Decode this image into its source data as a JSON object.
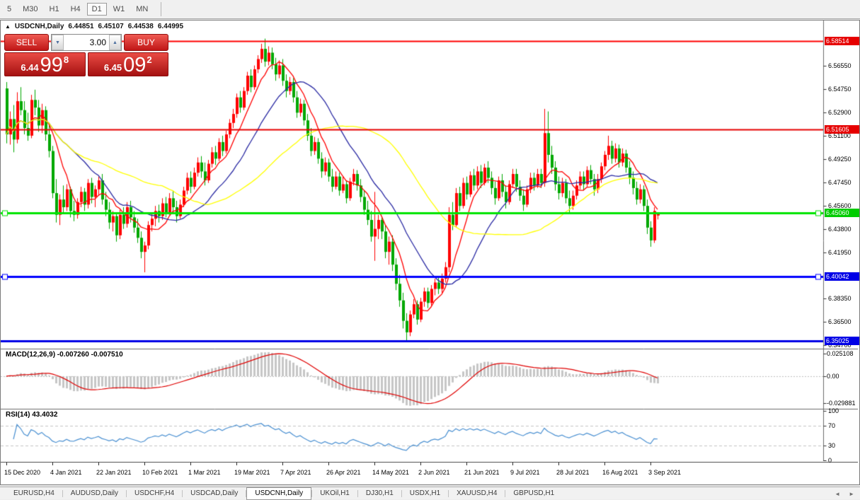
{
  "toolbar": {
    "timeframes": [
      "5",
      "M30",
      "H1",
      "H4",
      "D1",
      "W1",
      "MN"
    ],
    "active": "D1"
  },
  "window": {
    "title": {
      "collapse_icon": "▲",
      "symbol": "USDCNH,Daily",
      "open": "6.44851",
      "high": "6.45107",
      "low": "6.44538",
      "close": "6.44995"
    },
    "trade_panel": {
      "sell_label": "SELL",
      "buy_label": "BUY",
      "volume": "3.00",
      "spin_down_icon": "▼",
      "spin_up_icon": "▲",
      "sell_price_small": "6.44",
      "sell_price_big": "99",
      "sell_price_sup": "8",
      "buy_price_small": "6.45",
      "buy_price_big": "09",
      "buy_price_sup": "2"
    }
  },
  "chart_data": {
    "type": "candlestick",
    "symbol": "USDCNH",
    "period": "Daily",
    "up_color": "#ff0000",
    "down_color": "#00a800",
    "ylim": [
      6.3442,
      6.6012
    ],
    "y_ticks": [
      6.5655,
      6.5475,
      6.529,
      6.511,
      6.4925,
      6.4745,
      6.456,
      6.438,
      6.4195,
      6.3835,
      6.365,
      6.347
    ],
    "y_tick_labels": [
      "6.56550",
      "6.54750",
      "6.52900",
      "6.51100",
      "6.49250",
      "6.47450",
      "6.45600",
      "6.43800",
      "6.41950",
      "6.38350",
      "6.36500",
      "6.34700"
    ],
    "hlines": [
      {
        "price": 6.58514,
        "label": "6.58514",
        "color": "#ff0000",
        "badge": "#e60000",
        "width": 2,
        "markers": false
      },
      {
        "price": 6.51605,
        "label": "6.51605",
        "color": "#e60000",
        "badge": "#e60000",
        "width": 2,
        "markers": false
      },
      {
        "price": 6.4506,
        "label": "6.45060",
        "color": "#00e400",
        "badge": "#00cc00",
        "width": 3,
        "markers": true
      },
      {
        "price": 6.40042,
        "label": "6.40042",
        "color": "#0000ff",
        "badge": "#0000e6",
        "width": 3,
        "markers": true
      },
      {
        "price": 6.35025,
        "label": "6.35025",
        "color": "#0000e6",
        "badge": "#0000e6",
        "width": 3,
        "markers": false
      }
    ],
    "moving_averages": [
      {
        "period": 8,
        "color": "#ff0000"
      },
      {
        "period": 20,
        "color": "#2929a3"
      },
      {
        "period": 45,
        "color": "#ffff00"
      }
    ],
    "macd": {
      "label": "MACD(12,26,9) -0.007260 -0.007510",
      "fast": 12,
      "slow": 26,
      "signal": 9,
      "scale_labels": [
        "0.025108",
        "0.00",
        "-0.029881"
      ],
      "scale_values": [
        0.025108,
        0,
        -0.029881
      ],
      "bar_color": "#c6c6c6",
      "line_color": "#e00000"
    },
    "rsi": {
      "label": "RSI(14) 43.4032",
      "period": 14,
      "scale_labels": [
        "100",
        "70",
        "30",
        "0"
      ],
      "scale_values": [
        100,
        70,
        30,
        0
      ],
      "levels": [
        70,
        30
      ],
      "color": "#4a90d2"
    },
    "x_labels": [
      {
        "text": "15 Dec 2020",
        "i": 0
      },
      {
        "text": "4 Jan 2021",
        "i": 13
      },
      {
        "text": "22 Jan 2021",
        "i": 26
      },
      {
        "text": "10 Feb 2021",
        "i": 39
      },
      {
        "text": "1 Mar 2021",
        "i": 52
      },
      {
        "text": "19 Mar 2021",
        "i": 65
      },
      {
        "text": "7 Apr 2021",
        "i": 78
      },
      {
        "text": "26 Apr 2021",
        "i": 91
      },
      {
        "text": "14 May 2021",
        "i": 104
      },
      {
        "text": "2 Jun 2021",
        "i": 117
      },
      {
        "text": "21 Jun 2021",
        "i": 130
      },
      {
        "text": "9 Jul 2021",
        "i": 143
      },
      {
        "text": "28 Jul 2021",
        "i": 156
      },
      {
        "text": "16 Aug 2021",
        "i": 169
      },
      {
        "text": "3 Sep 2021",
        "i": 182
      }
    ],
    "candles": [
      [
        6.548,
        6.553,
        6.505,
        6.512
      ],
      [
        6.512,
        6.53,
        6.504,
        6.524
      ],
      [
        6.524,
        6.535,
        6.498,
        6.508
      ],
      [
        6.508,
        6.545,
        6.505,
        6.538
      ],
      [
        6.538,
        6.549,
        6.527,
        6.531
      ],
      [
        6.531,
        6.538,
        6.512,
        6.517
      ],
      [
        6.517,
        6.529,
        6.507,
        6.511
      ],
      [
        6.511,
        6.543,
        6.509,
        6.539
      ],
      [
        6.539,
        6.547,
        6.527,
        6.533
      ],
      [
        6.533,
        6.539,
        6.514,
        6.519
      ],
      [
        6.519,
        6.536,
        6.513,
        6.531
      ],
      [
        6.531,
        6.534,
        6.507,
        6.512
      ],
      [
        6.512,
        6.521,
        6.494,
        6.499
      ],
      [
        6.499,
        6.503,
        6.462,
        6.466
      ],
      [
        6.466,
        6.477,
        6.443,
        6.449
      ],
      [
        6.449,
        6.465,
        6.441,
        6.461
      ],
      [
        6.461,
        6.472,
        6.45,
        6.455
      ],
      [
        6.455,
        6.473,
        6.452,
        6.469
      ],
      [
        6.469,
        6.471,
        6.447,
        6.452
      ],
      [
        6.452,
        6.46,
        6.444,
        6.449
      ],
      [
        6.449,
        6.462,
        6.446,
        6.459
      ],
      [
        6.459,
        6.471,
        6.455,
        6.467
      ],
      [
        6.467,
        6.47,
        6.452,
        6.457
      ],
      [
        6.457,
        6.477,
        6.454,
        6.474
      ],
      [
        6.474,
        6.478,
        6.458,
        6.463
      ],
      [
        6.463,
        6.472,
        6.455,
        6.469
      ],
      [
        6.469,
        6.479,
        6.464,
        6.476
      ],
      [
        6.476,
        6.481,
        6.457,
        6.461
      ],
      [
        6.461,
        6.467,
        6.448,
        6.453
      ],
      [
        6.453,
        6.459,
        6.438,
        6.443
      ],
      [
        6.443,
        6.452,
        6.436,
        6.448
      ],
      [
        6.448,
        6.451,
        6.428,
        6.433
      ],
      [
        6.433,
        6.453,
        6.43,
        6.449
      ],
      [
        6.449,
        6.455,
        6.438,
        6.442
      ],
      [
        6.442,
        6.459,
        6.439,
        6.455
      ],
      [
        6.455,
        6.46,
        6.443,
        6.447
      ],
      [
        6.447,
        6.452,
        6.435,
        6.439
      ],
      [
        6.439,
        6.446,
        6.427,
        6.431
      ],
      [
        6.431,
        6.436,
        6.415,
        6.42
      ],
      [
        6.42,
        6.428,
        6.404,
        6.425
      ],
      [
        6.425,
        6.444,
        6.422,
        6.441
      ],
      [
        6.441,
        6.45,
        6.436,
        6.446
      ],
      [
        6.446,
        6.456,
        6.44,
        6.452
      ],
      [
        6.452,
        6.457,
        6.443,
        6.448
      ],
      [
        6.448,
        6.462,
        6.445,
        6.458
      ],
      [
        6.458,
        6.463,
        6.447,
        6.451
      ],
      [
        6.451,
        6.466,
        6.449,
        6.462
      ],
      [
        6.462,
        6.468,
        6.451,
        6.455
      ],
      [
        6.455,
        6.46,
        6.443,
        6.448
      ],
      [
        6.448,
        6.461,
        6.446,
        6.457
      ],
      [
        6.457,
        6.471,
        6.455,
        6.468
      ],
      [
        6.468,
        6.482,
        6.465,
        6.478
      ],
      [
        6.478,
        6.483,
        6.466,
        6.471
      ],
      [
        6.471,
        6.486,
        6.469,
        6.482
      ],
      [
        6.482,
        6.494,
        6.479,
        6.49
      ],
      [
        6.49,
        6.495,
        6.478,
        6.483
      ],
      [
        6.483,
        6.49,
        6.472,
        6.476
      ],
      [
        6.476,
        6.492,
        6.474,
        6.489
      ],
      [
        6.489,
        6.502,
        6.486,
        6.498
      ],
      [
        6.498,
        6.503,
        6.488,
        6.493
      ],
      [
        6.493,
        6.509,
        6.491,
        6.506
      ],
      [
        6.506,
        6.511,
        6.495,
        6.499
      ],
      [
        6.499,
        6.515,
        6.497,
        6.512
      ],
      [
        6.512,
        6.524,
        6.509,
        6.521
      ],
      [
        6.521,
        6.532,
        6.517,
        6.528
      ],
      [
        6.528,
        6.544,
        6.525,
        6.541
      ],
      [
        6.541,
        6.546,
        6.529,
        6.533
      ],
      [
        6.533,
        6.549,
        6.531,
        6.546
      ],
      [
        6.546,
        6.561,
        6.543,
        6.558
      ],
      [
        6.558,
        6.563,
        6.545,
        6.549
      ],
      [
        6.549,
        6.566,
        6.547,
        6.563
      ],
      [
        6.563,
        6.574,
        6.56,
        6.571
      ],
      [
        6.571,
        6.583,
        6.568,
        6.579
      ],
      [
        6.579,
        6.587,
        6.565,
        6.569
      ],
      [
        6.569,
        6.581,
        6.566,
        6.576
      ],
      [
        6.576,
        6.58,
        6.563,
        6.567
      ],
      [
        6.567,
        6.572,
        6.554,
        6.559
      ],
      [
        6.559,
        6.57,
        6.556,
        6.566
      ],
      [
        6.566,
        6.571,
        6.55,
        6.554
      ],
      [
        6.554,
        6.559,
        6.541,
        6.546
      ],
      [
        6.546,
        6.557,
        6.543,
        6.553
      ],
      [
        6.553,
        6.556,
        6.537,
        6.541
      ],
      [
        6.541,
        6.546,
        6.525,
        6.529
      ],
      [
        6.529,
        6.54,
        6.526,
        6.536
      ],
      [
        6.536,
        6.539,
        6.519,
        6.523
      ],
      [
        6.523,
        6.528,
        6.507,
        6.511
      ],
      [
        6.511,
        6.517,
        6.495,
        6.499
      ],
      [
        6.499,
        6.51,
        6.496,
        6.506
      ],
      [
        6.506,
        6.509,
        6.489,
        6.493
      ],
      [
        6.493,
        6.498,
        6.478,
        6.483
      ],
      [
        6.483,
        6.494,
        6.48,
        6.49
      ],
      [
        6.49,
        6.493,
        6.475,
        6.479
      ],
      [
        6.479,
        6.485,
        6.467,
        6.471
      ],
      [
        6.471,
        6.483,
        6.469,
        6.479
      ],
      [
        6.479,
        6.482,
        6.464,
        6.468
      ],
      [
        6.468,
        6.479,
        6.466,
        6.473
      ],
      [
        6.473,
        6.476,
        6.458,
        6.462
      ],
      [
        6.462,
        6.478,
        6.46,
        6.475
      ],
      [
        6.475,
        6.485,
        6.472,
        6.481
      ],
      [
        6.481,
        6.484,
        6.468,
        6.472
      ],
      [
        6.472,
        6.477,
        6.459,
        6.463
      ],
      [
        6.463,
        6.468,
        6.449,
        6.453
      ],
      [
        6.453,
        6.46,
        6.441,
        6.445
      ],
      [
        6.445,
        6.452,
        6.428,
        6.432
      ],
      [
        6.432,
        6.467,
        6.413,
        6.438
      ],
      [
        6.438,
        6.449,
        6.43,
        6.445
      ],
      [
        6.445,
        6.448,
        6.43,
        6.436
      ],
      [
        6.436,
        6.441,
        6.415,
        6.42
      ],
      [
        6.42,
        6.432,
        6.41,
        6.428
      ],
      [
        6.428,
        6.433,
        6.405,
        6.41
      ],
      [
        6.41,
        6.415,
        6.39,
        6.395
      ],
      [
        6.395,
        6.402,
        6.377,
        6.382
      ],
      [
        6.382,
        6.388,
        6.36,
        6.366
      ],
      [
        6.366,
        6.372,
        6.3505,
        6.357
      ],
      [
        6.357,
        6.374,
        6.354,
        6.371
      ],
      [
        6.371,
        6.383,
        6.368,
        6.379
      ],
      [
        6.379,
        6.382,
        6.363,
        6.367
      ],
      [
        6.367,
        6.384,
        6.365,
        6.381
      ],
      [
        6.381,
        6.392,
        6.377,
        6.389
      ],
      [
        6.389,
        6.392,
        6.376,
        6.38
      ],
      [
        6.38,
        6.394,
        6.378,
        6.391
      ],
      [
        6.391,
        6.399,
        6.386,
        6.396
      ],
      [
        6.396,
        6.401,
        6.387,
        6.391
      ],
      [
        6.391,
        6.403,
        6.388,
        6.399
      ],
      [
        6.399,
        6.412,
        6.396,
        6.408
      ],
      [
        6.408,
        6.455,
        6.404,
        6.449
      ],
      [
        6.449,
        6.459,
        6.437,
        6.441
      ],
      [
        6.441,
        6.47,
        6.439,
        6.466
      ],
      [
        6.466,
        6.471,
        6.452,
        6.456
      ],
      [
        6.456,
        6.478,
        6.454,
        6.474
      ],
      [
        6.474,
        6.479,
        6.461,
        6.465
      ],
      [
        6.465,
        6.483,
        6.463,
        6.48
      ],
      [
        6.48,
        6.485,
        6.468,
        6.472
      ],
      [
        6.472,
        6.487,
        6.469,
        6.483
      ],
      [
        6.483,
        6.488,
        6.47,
        6.474
      ],
      [
        6.474,
        6.489,
        6.472,
        6.486
      ],
      [
        6.486,
        6.491,
        6.474,
        6.478
      ],
      [
        6.478,
        6.483,
        6.465,
        6.47
      ],
      [
        6.47,
        6.475,
        6.457,
        6.462
      ],
      [
        6.462,
        6.479,
        6.46,
        6.476
      ],
      [
        6.476,
        6.481,
        6.463,
        6.467
      ],
      [
        6.467,
        6.472,
        6.454,
        6.459
      ],
      [
        6.459,
        6.476,
        6.457,
        6.473
      ],
      [
        6.473,
        6.485,
        6.47,
        6.481
      ],
      [
        6.481,
        6.485,
        6.467,
        6.471
      ],
      [
        6.471,
        6.476,
        6.46,
        6.464
      ],
      [
        6.464,
        6.469,
        6.452,
        6.457
      ],
      [
        6.457,
        6.472,
        6.455,
        6.469
      ],
      [
        6.469,
        6.482,
        6.466,
        6.478
      ],
      [
        6.478,
        6.482,
        6.468,
        6.472
      ],
      [
        6.472,
        6.485,
        6.47,
        6.481
      ],
      [
        6.481,
        6.485,
        6.47,
        6.474
      ],
      [
        6.474,
        6.532,
        6.471,
        6.513
      ],
      [
        6.513,
        6.53,
        6.49,
        6.496
      ],
      [
        6.496,
        6.503,
        6.481,
        6.486
      ],
      [
        6.486,
        6.491,
        6.468,
        6.473
      ],
      [
        6.473,
        6.479,
        6.461,
        6.466
      ],
      [
        6.466,
        6.478,
        6.463,
        6.474
      ],
      [
        6.474,
        6.477,
        6.458,
        6.462
      ],
      [
        6.462,
        6.468,
        6.451,
        6.456
      ],
      [
        6.456,
        6.468,
        6.453,
        6.464
      ],
      [
        6.464,
        6.476,
        6.461,
        6.472
      ],
      [
        6.472,
        6.483,
        6.469,
        6.479
      ],
      [
        6.479,
        6.483,
        6.468,
        6.473
      ],
      [
        6.473,
        6.487,
        6.471,
        6.484
      ],
      [
        6.484,
        6.488,
        6.473,
        6.477
      ],
      [
        6.477,
        6.481,
        6.464,
        6.469
      ],
      [
        6.469,
        6.481,
        6.466,
        6.477
      ],
      [
        6.477,
        6.49,
        6.474,
        6.487
      ],
      [
        6.487,
        6.499,
        6.484,
        6.496
      ],
      [
        6.496,
        6.511,
        6.492,
        6.503
      ],
      [
        6.503,
        6.507,
        6.489,
        6.493
      ],
      [
        6.493,
        6.505,
        6.49,
        6.501
      ],
      [
        6.501,
        6.504,
        6.486,
        6.49
      ],
      [
        6.49,
        6.501,
        6.487,
        6.497
      ],
      [
        6.497,
        6.5,
        6.482,
        6.486
      ],
      [
        6.486,
        6.491,
        6.473,
        6.478
      ],
      [
        6.478,
        6.483,
        6.465,
        6.47
      ],
      [
        6.47,
        6.475,
        6.457,
        6.461
      ],
      [
        6.461,
        6.473,
        6.458,
        6.469
      ],
      [
        6.469,
        6.472,
        6.452,
        6.456
      ],
      [
        6.456,
        6.461,
        6.434,
        6.439
      ],
      [
        6.439,
        6.444,
        6.424,
        6.429
      ],
      [
        6.429,
        6.455,
        6.427,
        6.452
      ],
      [
        6.4485,
        6.4511,
        6.4454,
        6.45
      ]
    ]
  },
  "tabs": {
    "items": [
      "EURUSD,H4",
      "AUDUSD,Daily",
      "USDCHF,H4",
      "USDCAD,Daily",
      "USDCNH,Daily",
      "UKOil,H1",
      "DJ30,H1",
      "USDX,H1",
      "XAUUSD,H4",
      "GBPUSD,H1"
    ],
    "active": "USDCNH,Daily",
    "scroll_left_icon": "◄",
    "scroll_right_icon": "►"
  }
}
